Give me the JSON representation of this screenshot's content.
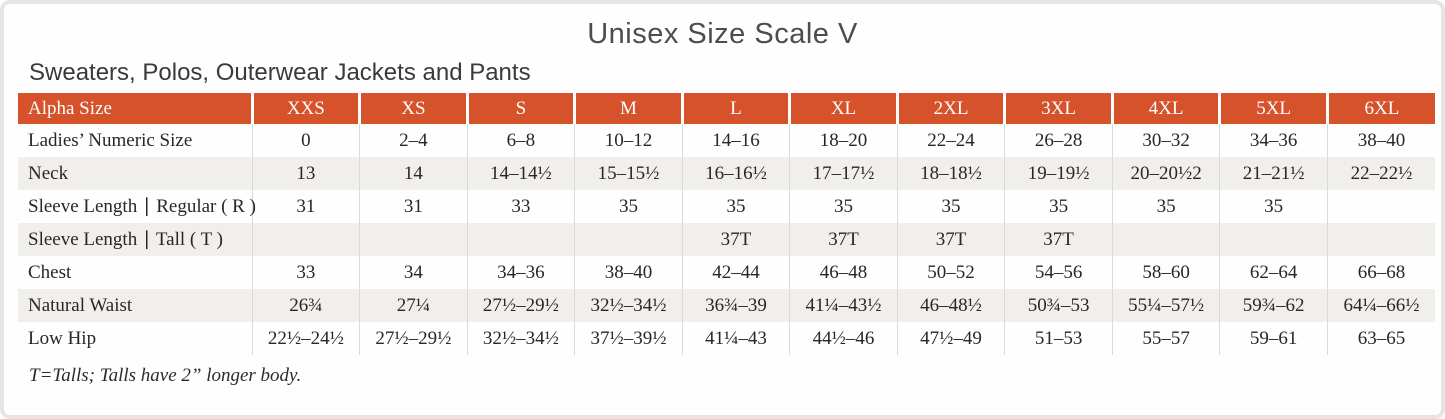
{
  "page": {
    "title": "Unisex Size Scale V",
    "subtitle": "Sweaters, Polos, Outerwear Jackets and Pants",
    "footnote": "T=Talls; Talls have 2” longer body."
  },
  "colors": {
    "header_bg": "#d5522a",
    "header_text": "#ffffff",
    "row_shaded_bg": "#f1efec",
    "row_plain_bg": "#fefefe",
    "body_text": "#2b2620",
    "title_text": "#4d4d4d",
    "column_separator": "#dcdad6",
    "card_border": "#e7e5e2"
  },
  "table": {
    "header": [
      "Alpha Size",
      "XXS",
      "XS",
      "S",
      "M",
      "L",
      "XL",
      "2XL",
      "3XL",
      "4XL",
      "5XL",
      "6XL"
    ],
    "rows": [
      {
        "label": "Ladies’ Numeric Size",
        "shaded": false,
        "values": [
          "0",
          "2–4",
          "6–8",
          "10–12",
          "14–16",
          "18–20",
          "22–24",
          "26–28",
          "30–32",
          "34–36",
          "38–40"
        ]
      },
      {
        "label": "Neck",
        "shaded": true,
        "values": [
          "13",
          "14",
          "14–14½",
          "15–15½",
          "16–16½",
          "17–17½",
          "18–18½",
          "19–19½",
          "20–20½2",
          "21–21½",
          "22–22½"
        ]
      },
      {
        "label": "Sleeve Length ∣ Regular ( R )",
        "shaded": false,
        "values": [
          "31",
          "31",
          "33",
          "35",
          "35",
          "35",
          "35",
          "35",
          "35",
          "35",
          ""
        ]
      },
      {
        "label": "Sleeve Length ∣ Tall ( T )",
        "shaded": true,
        "values": [
          "",
          "",
          "",
          "",
          "37T",
          "37T",
          "37T",
          "37T",
          "",
          "",
          ""
        ]
      },
      {
        "label": "Chest",
        "shaded": false,
        "values": [
          "33",
          "34",
          "34–36",
          "38–40",
          "42–44",
          "46–48",
          "50–52",
          "54–56",
          "58–60",
          "62–64",
          "66–68"
        ]
      },
      {
        "label": "Natural Waist",
        "shaded": true,
        "values": [
          "26¾",
          "27¼",
          "27½–29½",
          "32½–34½",
          "36¾–39",
          "41¼–43½",
          "46–48½",
          "50¾–53",
          "55¼–57½",
          "59¾–62",
          "64¼–66½"
        ]
      },
      {
        "label": "Low Hip",
        "shaded": false,
        "values": [
          "22½–24½",
          "27½–29½",
          "32½–34½",
          "37½–39½",
          "41¼–43",
          "44½–46",
          "47½–49",
          "51–53",
          "55–57",
          "59–61",
          "63–65"
        ]
      }
    ]
  }
}
